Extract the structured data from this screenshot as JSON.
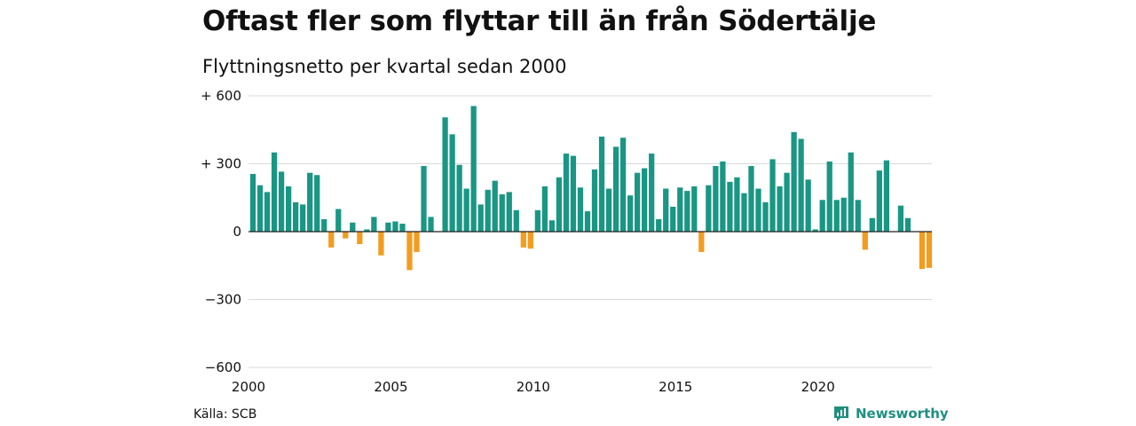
{
  "title": "Oftast fler som flyttar till än från Södertälje",
  "subtitle": "Flyttningsnetto per kvartal sedan 2000",
  "source": "Källa: SCB",
  "brand": {
    "name": "Newsworthy",
    "icon": "newsworthy-logo-icon"
  },
  "colors": {
    "positive": "#1a9684",
    "negative": "#f39c1f",
    "grid": "#d9d9d9",
    "brand": "#1f8f80"
  },
  "chart_data": {
    "type": "bar",
    "title": "Oftast fler som flyttar till än från Södertälje",
    "subtitle": "Flyttningsnetto per kvartal sedan 2000",
    "xlabel": "",
    "ylabel": "",
    "ylim": [
      -600,
      600
    ],
    "yticks": [
      600,
      300,
      0,
      -300,
      -600
    ],
    "ytick_labels": [
      "+ 600",
      "+ 300",
      "0",
      "−300",
      "−600"
    ],
    "xticks": [
      2000,
      2005,
      2010,
      2015,
      2020
    ],
    "xlim": [
      2000,
      2024
    ],
    "grid": true,
    "series": [
      {
        "start": "2000Q1",
        "values": [
          255,
          205,
          175,
          350,
          265,
          200,
          130,
          120,
          260,
          250,
          55,
          -70,
          100,
          -30,
          40,
          -55,
          10,
          65,
          -105,
          40,
          45,
          35,
          -170,
          -90,
          290,
          65,
          0,
          505,
          430,
          295,
          190,
          555,
          120,
          185,
          225,
          165,
          175,
          95,
          -70,
          -75,
          95,
          200,
          50,
          240,
          345,
          335,
          195,
          90,
          275,
          420,
          190,
          375,
          415,
          160,
          260,
          280,
          345,
          55,
          190,
          110,
          195,
          180,
          200,
          -90,
          205,
          290,
          310,
          220,
          240,
          170,
          290,
          190,
          130,
          320,
          200,
          260,
          440,
          410,
          230,
          10,
          140,
          310,
          140,
          150,
          350,
          140,
          -80,
          60,
          270,
          315,
          0,
          115,
          60,
          0,
          -165,
          -160
        ]
      }
    ]
  }
}
